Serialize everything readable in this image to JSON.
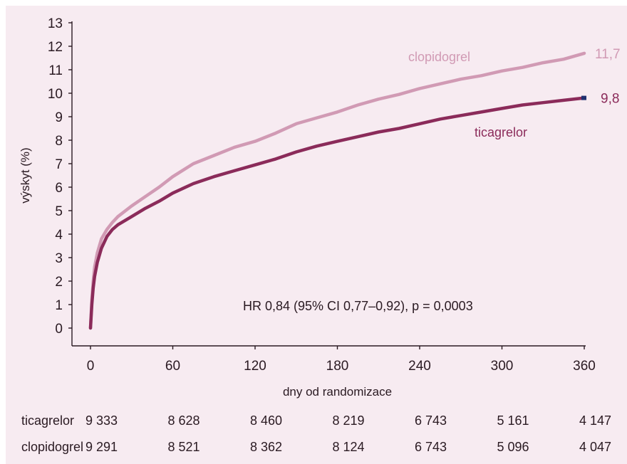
{
  "chart_data": {
    "type": "line",
    "xlabel": "dny od randomizace",
    "ylabel": "výskyt (%)",
    "xlim": [
      0,
      360
    ],
    "ylim": [
      0,
      13
    ],
    "x_ticks": [
      0,
      60,
      120,
      180,
      240,
      300,
      360
    ],
    "y_ticks": [
      0,
      1,
      2,
      3,
      4,
      5,
      6,
      7,
      8,
      9,
      10,
      11,
      12,
      13
    ],
    "grid": false,
    "series": [
      {
        "name": "clopidogrel",
        "color": "#d19ab4",
        "end_label": "11,7",
        "x": [
          0,
          1,
          2,
          3,
          5,
          8,
          12,
          16,
          20,
          30,
          40,
          50,
          60,
          75,
          90,
          105,
          120,
          135,
          150,
          165,
          180,
          195,
          210,
          225,
          240,
          255,
          270,
          285,
          300,
          315,
          330,
          345,
          360
        ],
        "y": [
          0,
          1.2,
          2.0,
          2.6,
          3.2,
          3.8,
          4.2,
          4.5,
          4.75,
          5.2,
          5.6,
          6.0,
          6.45,
          7.0,
          7.35,
          7.7,
          7.95,
          8.3,
          8.7,
          8.95,
          9.2,
          9.5,
          9.75,
          9.95,
          10.2,
          10.4,
          10.6,
          10.75,
          10.95,
          11.1,
          11.3,
          11.45,
          11.7
        ]
      },
      {
        "name": "ticagrelor",
        "color": "#8b2b5a",
        "end_label": "9,8",
        "x": [
          0,
          1,
          2,
          3,
          5,
          8,
          12,
          16,
          20,
          30,
          40,
          50,
          60,
          75,
          90,
          105,
          120,
          135,
          150,
          165,
          180,
          195,
          210,
          225,
          240,
          255,
          270,
          285,
          300,
          315,
          330,
          345,
          360
        ],
        "y": [
          0,
          1.0,
          1.7,
          2.2,
          2.8,
          3.4,
          3.9,
          4.2,
          4.4,
          4.75,
          5.1,
          5.4,
          5.75,
          6.15,
          6.45,
          6.7,
          6.95,
          7.2,
          7.5,
          7.75,
          7.95,
          8.15,
          8.35,
          8.5,
          8.7,
          8.9,
          9.05,
          9.2,
          9.35,
          9.5,
          9.6,
          9.7,
          9.8
        ]
      }
    ],
    "annotation": "HR 0,84 (95% CI 0,77–0,92), p = 0,0003",
    "risk_table": {
      "rows": [
        {
          "label": "ticagrelor",
          "values": [
            "9 333",
            "8 628",
            "8 460",
            "8 219",
            "6 743",
            "5 161",
            "4 147"
          ]
        },
        {
          "label": "clopidogrel",
          "values": [
            "9 291",
            "8 521",
            "8 362",
            "8 124",
            "6 743",
            "5 096",
            "4 047"
          ]
        }
      ]
    }
  },
  "colors": {
    "background": "#f7ebf1",
    "axis": "#2a1a22",
    "clopidogrel": "#d19ab4",
    "ticagrelor": "#8b2b5a",
    "end_marker": "#1f2f6e"
  }
}
